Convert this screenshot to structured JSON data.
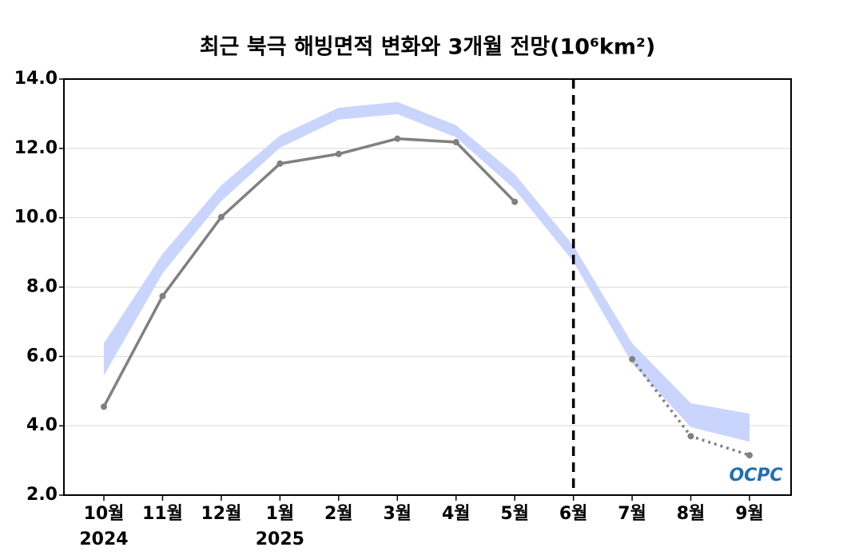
{
  "chart_data": {
    "type": "line",
    "title": "최근 북극 해빙면적 변화와 3개월 전망(10⁶km²)",
    "categories": [
      "10월",
      "11월",
      "12월",
      "1월",
      "2월",
      "3월",
      "4월",
      "5월",
      "6월",
      "7월",
      "8월",
      "9월"
    ],
    "category_years": [
      "2024",
      null,
      null,
      "2025",
      null,
      null,
      null,
      null,
      null,
      null,
      null,
      null
    ],
    "band": {
      "color": "#c9d5fc",
      "low": [
        5.45,
        8.4,
        10.48,
        12.02,
        12.83,
        12.99,
        12.32,
        10.82,
        8.73,
        5.8,
        3.96,
        3.54
      ],
      "high": [
        6.38,
        8.96,
        10.94,
        12.37,
        13.17,
        13.34,
        12.67,
        11.26,
        9.19,
        6.38,
        4.65,
        4.35
      ]
    },
    "series": [
      {
        "color": "#808080",
        "dash": "solid",
        "values": [
          4.55,
          7.74,
          10.02,
          11.56,
          11.84,
          12.28,
          12.18,
          10.46,
          null,
          null,
          null,
          null
        ]
      },
      {
        "color": "#808080",
        "dash": "dotted",
        "values": [
          null,
          null,
          null,
          null,
          null,
          null,
          null,
          null,
          null,
          5.92,
          3.7,
          3.15
        ]
      }
    ],
    "vline": "6월",
    "ylim": [
      2,
      14
    ],
    "yticks": [
      {
        "value": 2,
        "label": "2.0"
      },
      {
        "value": 4,
        "label": "4.0"
      },
      {
        "value": 6,
        "label": "6.0"
      },
      {
        "value": 8,
        "label": "8.0"
      },
      {
        "value": 10,
        "label": "10.0"
      },
      {
        "value": 12,
        "label": "12.0"
      },
      {
        "value": 14,
        "label": "14.0"
      }
    ],
    "grid": true,
    "logo": "OCPC"
  }
}
